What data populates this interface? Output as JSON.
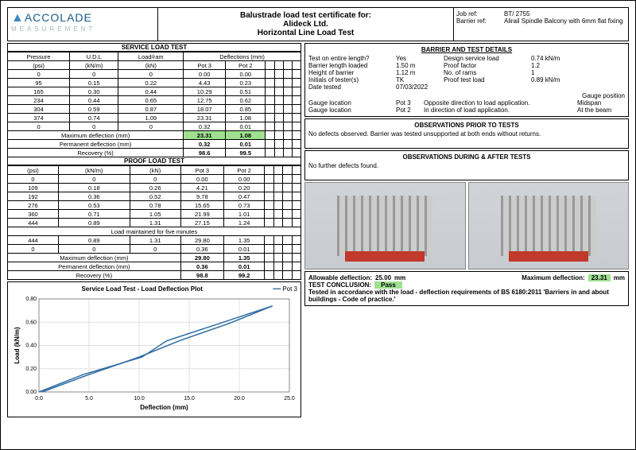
{
  "header": {
    "logo_top": "ACCOLADE",
    "logo_sub": "MEASUREMENT",
    "title_l1": "Balustrade load test certificate for:",
    "title_l2": "Alideck Ltd.",
    "title_l3": "Horizontal Line Load Test",
    "jobref_label": "Job ref:",
    "jobref_val": "BT/   2755",
    "barrier_label": "Barrier ref:",
    "barrier_val": "Alirail Spindle Balcony with 6mm flat fixing"
  },
  "service_test": {
    "title": "SERVICE LOAD TEST",
    "defl_title": "Deflections (mm)",
    "cols": [
      "Pressure",
      "U.D.L",
      "Load/ram",
      "",
      "",
      "",
      "",
      "",
      ""
    ],
    "cols2": [
      "(psi)",
      "(kN/m)",
      "(kN)",
      "Pot 3",
      "Pot 2",
      "",
      "",
      "",
      ""
    ],
    "rows": [
      [
        "0",
        "0",
        "0",
        "0.00",
        "0.00",
        "",
        "",
        "",
        ""
      ],
      [
        "95",
        "0.15",
        "0.22",
        "4.43",
        "0.23",
        "",
        "",
        "",
        ""
      ],
      [
        "165",
        "0.30",
        "0.44",
        "10.29",
        "0.51",
        "",
        "",
        "",
        ""
      ],
      [
        "234",
        "0.44",
        "0.65",
        "12.75",
        "0.62",
        "",
        "",
        "",
        ""
      ],
      [
        "304",
        "0.59",
        "0.87",
        "18.07",
        "0.85",
        "",
        "",
        "",
        ""
      ],
      [
        "374",
        "0.74",
        "1.09",
        "23.31",
        "1.08",
        "",
        "",
        "",
        ""
      ],
      [
        "0",
        "0",
        "0",
        "0.32",
        "0.01",
        "",
        "",
        "",
        ""
      ]
    ],
    "maxdef_label": "Maximum deflection (mm)",
    "maxdef": [
      "23.31",
      "1.08"
    ],
    "permdef_label": "Permanent deflection (mm)",
    "permdef": [
      "0.32",
      "0.01"
    ],
    "rec_label": "Recovery (%)",
    "rec": [
      "98.6",
      "99.5"
    ]
  },
  "proof_test": {
    "title": "PROOF LOAD TEST",
    "cols2": [
      "(psi)",
      "(kN/m)",
      "(kN)",
      "Pot 3",
      "Pot 2",
      "",
      "",
      "",
      ""
    ],
    "rows": [
      [
        "0",
        "0",
        "0",
        "0.00",
        "0.00",
        "",
        "",
        "",
        ""
      ],
      [
        "109",
        "0.18",
        "0.26",
        "4.21",
        "0.20",
        "",
        "",
        "",
        ""
      ],
      [
        "192",
        "0.36",
        "0.52",
        "9.78",
        "0.47",
        "",
        "",
        "",
        ""
      ],
      [
        "276",
        "0.53",
        "0.78",
        "15.65",
        "0.73",
        "",
        "",
        "",
        ""
      ],
      [
        "360",
        "0.71",
        "1.05",
        "21.99",
        "1.01",
        "",
        "",
        "",
        ""
      ],
      [
        "444",
        "0.89",
        "1.31",
        "27.15",
        "1.24",
        "",
        "",
        "",
        ""
      ]
    ],
    "loadmaint": "Load maintained for five minutes",
    "rows2": [
      [
        "444",
        "0.89",
        "1.31",
        "29.80",
        "1.35",
        "",
        "",
        "",
        ""
      ],
      [
        "0",
        "0",
        "0",
        "0.36",
        "0.01",
        "",
        "",
        "",
        ""
      ]
    ],
    "maxdef_label": "Maximum deflection (mm)",
    "maxdef": [
      "29.80",
      "1.35"
    ],
    "permdef_label": "Permanent deflection (mm)",
    "permdef": [
      "0.36",
      "0.01"
    ],
    "rec_label": "Recovery (%)",
    "rec": [
      "98.8",
      "99.2"
    ]
  },
  "chart": {
    "title": "Service Load Test - Load Deflection Plot",
    "series_label": "Pot 3",
    "xlabel": "Deflection (mm)",
    "ylabel": "Load (kN/m)",
    "xlim": [
      0,
      25
    ],
    "xticks": [
      0.0,
      5.0,
      10.0,
      15.0,
      20.0,
      25.0
    ],
    "ylim": [
      0,
      0.8
    ],
    "yticks": [
      "0.00",
      "0.20",
      "0.40",
      "0.60",
      "0.80"
    ],
    "line_color": "#2e6ca4",
    "grid_color": "#e0e0e0",
    "points_up": [
      [
        0,
        0
      ],
      [
        4.43,
        0.15
      ],
      [
        10.29,
        0.3
      ],
      [
        12.75,
        0.44
      ],
      [
        18.07,
        0.59
      ],
      [
        23.31,
        0.74
      ]
    ],
    "points_down": [
      [
        23.31,
        0.74
      ],
      [
        19,
        0.59
      ],
      [
        14,
        0.44
      ],
      [
        10,
        0.3
      ],
      [
        5,
        0.15
      ],
      [
        0.32,
        0
      ]
    ]
  },
  "barrier_details": {
    "title": "BARRIER AND TEST DETAILS",
    "rows": [
      {
        "k": "Test on entire length?",
        "v": "Yes",
        "k2": "Design service load",
        "v2": "0.74",
        "u2": "kN/m"
      },
      {
        "k": "Barrier length loaded",
        "v": "1.50",
        "u": "m",
        "k2": "Proof factor",
        "v2": "1.2",
        "u2": ""
      },
      {
        "k": "Height of barrier",
        "v": "1.12",
        "u": "m",
        "k2": "No. of rams",
        "v2": "1",
        "u2": ""
      },
      {
        "k": "Initials of tester(s)",
        "v": "TK",
        "u": "",
        "k2": "Proof test load",
        "v2": "0.89",
        "u2": "kN/m"
      },
      {
        "k": "Date tested",
        "v": "07/03/2022",
        "u": "",
        "k2": "",
        "v2": "",
        "u2": ""
      }
    ],
    "gauge_pos_label": "Gauge position",
    "gauge1": {
      "loc": "Gauge location",
      "pot": "Pot 3",
      "desc": "Opposite direction to load application.",
      "pos": "Midspan"
    },
    "gauge2": {
      "loc": "Gauge location",
      "pot": "Pot 2",
      "desc": "In direction of load application.",
      "pos": "At the beam"
    }
  },
  "obs_prior": {
    "title": "OBSERVATIONS PRIOR TO TESTS",
    "text": "No defects observed. Barrier was tested unsupported at both ends without returns."
  },
  "obs_after": {
    "title": "OBSERVATIONS DURING & AFTER TESTS",
    "text": "No further defects found."
  },
  "conclusion": {
    "allow_label": "Allowable deflection:",
    "allow_val": "25.00",
    "allow_unit": "mm",
    "max_label": "Maximum deflection:",
    "max_val": "23.31",
    "max_unit": "mm",
    "conc_label": "TEST CONCLUSION:",
    "conc_val": "Pass",
    "std": "Tested in accordance with the load - deflection requirements of BS 6180:2011 'Barriers in and about buildings - Code of practice.'"
  }
}
